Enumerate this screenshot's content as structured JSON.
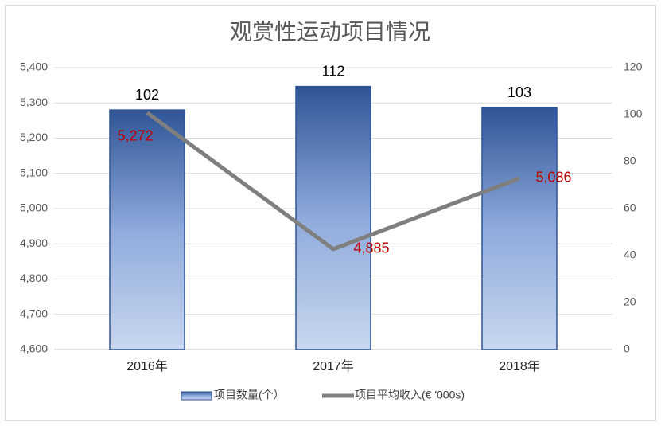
{
  "chart_data": {
    "type": "combo",
    "title": "观赏性运动项目情况",
    "categories": [
      "2016年",
      "2017年",
      "2018年"
    ],
    "series": [
      {
        "name": "项目数量(个）",
        "type": "bar",
        "axis": "y2",
        "color": "#2f5597",
        "values": [
          102,
          112,
          103
        ]
      },
      {
        "name": "项目平均收入(€ '000s)",
        "type": "line",
        "color": "#7f7f7f",
        "values": [
          5272,
          4885,
          5086
        ],
        "value_labels": [
          "5,272",
          "4,885",
          "5,086"
        ],
        "label_color": "#c00000"
      }
    ],
    "ylim": [
      4600,
      5400
    ],
    "yticks": [
      {
        "value": 4600,
        "label": "4,600"
      },
      {
        "value": 4700,
        "label": "4,700"
      },
      {
        "value": 4800,
        "label": "4,800"
      },
      {
        "value": 4900,
        "label": "4,900"
      },
      {
        "value": 5000,
        "label": "5,000"
      },
      {
        "value": 5100,
        "label": "5,100"
      },
      {
        "value": 5200,
        "label": "5,200"
      },
      {
        "value": 5300,
        "label": "5,300"
      },
      {
        "value": 5400,
        "label": "5,400"
      }
    ],
    "y2lim": [
      0,
      120
    ],
    "y2ticks": [
      0,
      20,
      40,
      60,
      80,
      100,
      120
    ],
    "grid": true,
    "legend": "bottom"
  }
}
